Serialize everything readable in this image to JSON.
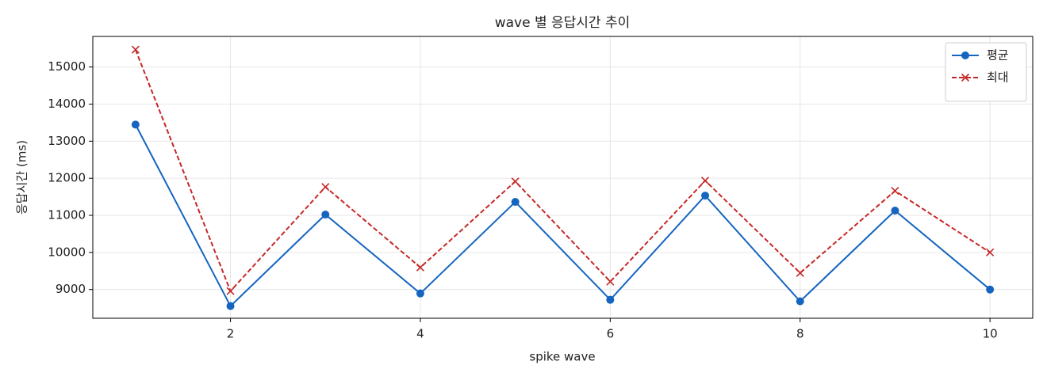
{
  "chart_data": {
    "type": "line",
    "title": "wave 별 응답시간 추이",
    "x_label": "spike wave",
    "y_label": "응답시간 (ms)",
    "x": [
      1,
      2,
      3,
      4,
      5,
      6,
      7,
      8,
      9,
      10
    ],
    "series": [
      {
        "name": "평균",
        "color": "#1565c0",
        "marker": "circle",
        "linestyle": "solid",
        "values": [
          13447,
          8553,
          11021,
          8894,
          11362,
          8723,
          11532,
          8681,
          11128,
          9000
        ]
      },
      {
        "name": "최대",
        "color": "#c62828",
        "marker": "x",
        "linestyle": "dashed",
        "values": [
          15468,
          8957,
          11766,
          9596,
          11915,
          9213,
          11936,
          9447,
          11660,
          10000
        ]
      }
    ],
    "xlim": [
      0.55,
      10.45
    ],
    "ylim": [
      8225,
      15825
    ],
    "xticks": [
      2,
      4,
      6,
      8,
      10
    ],
    "yticks": [
      9000,
      10000,
      11000,
      12000,
      13000,
      14000,
      15000
    ],
    "grid": true,
    "legend": "upper right"
  }
}
